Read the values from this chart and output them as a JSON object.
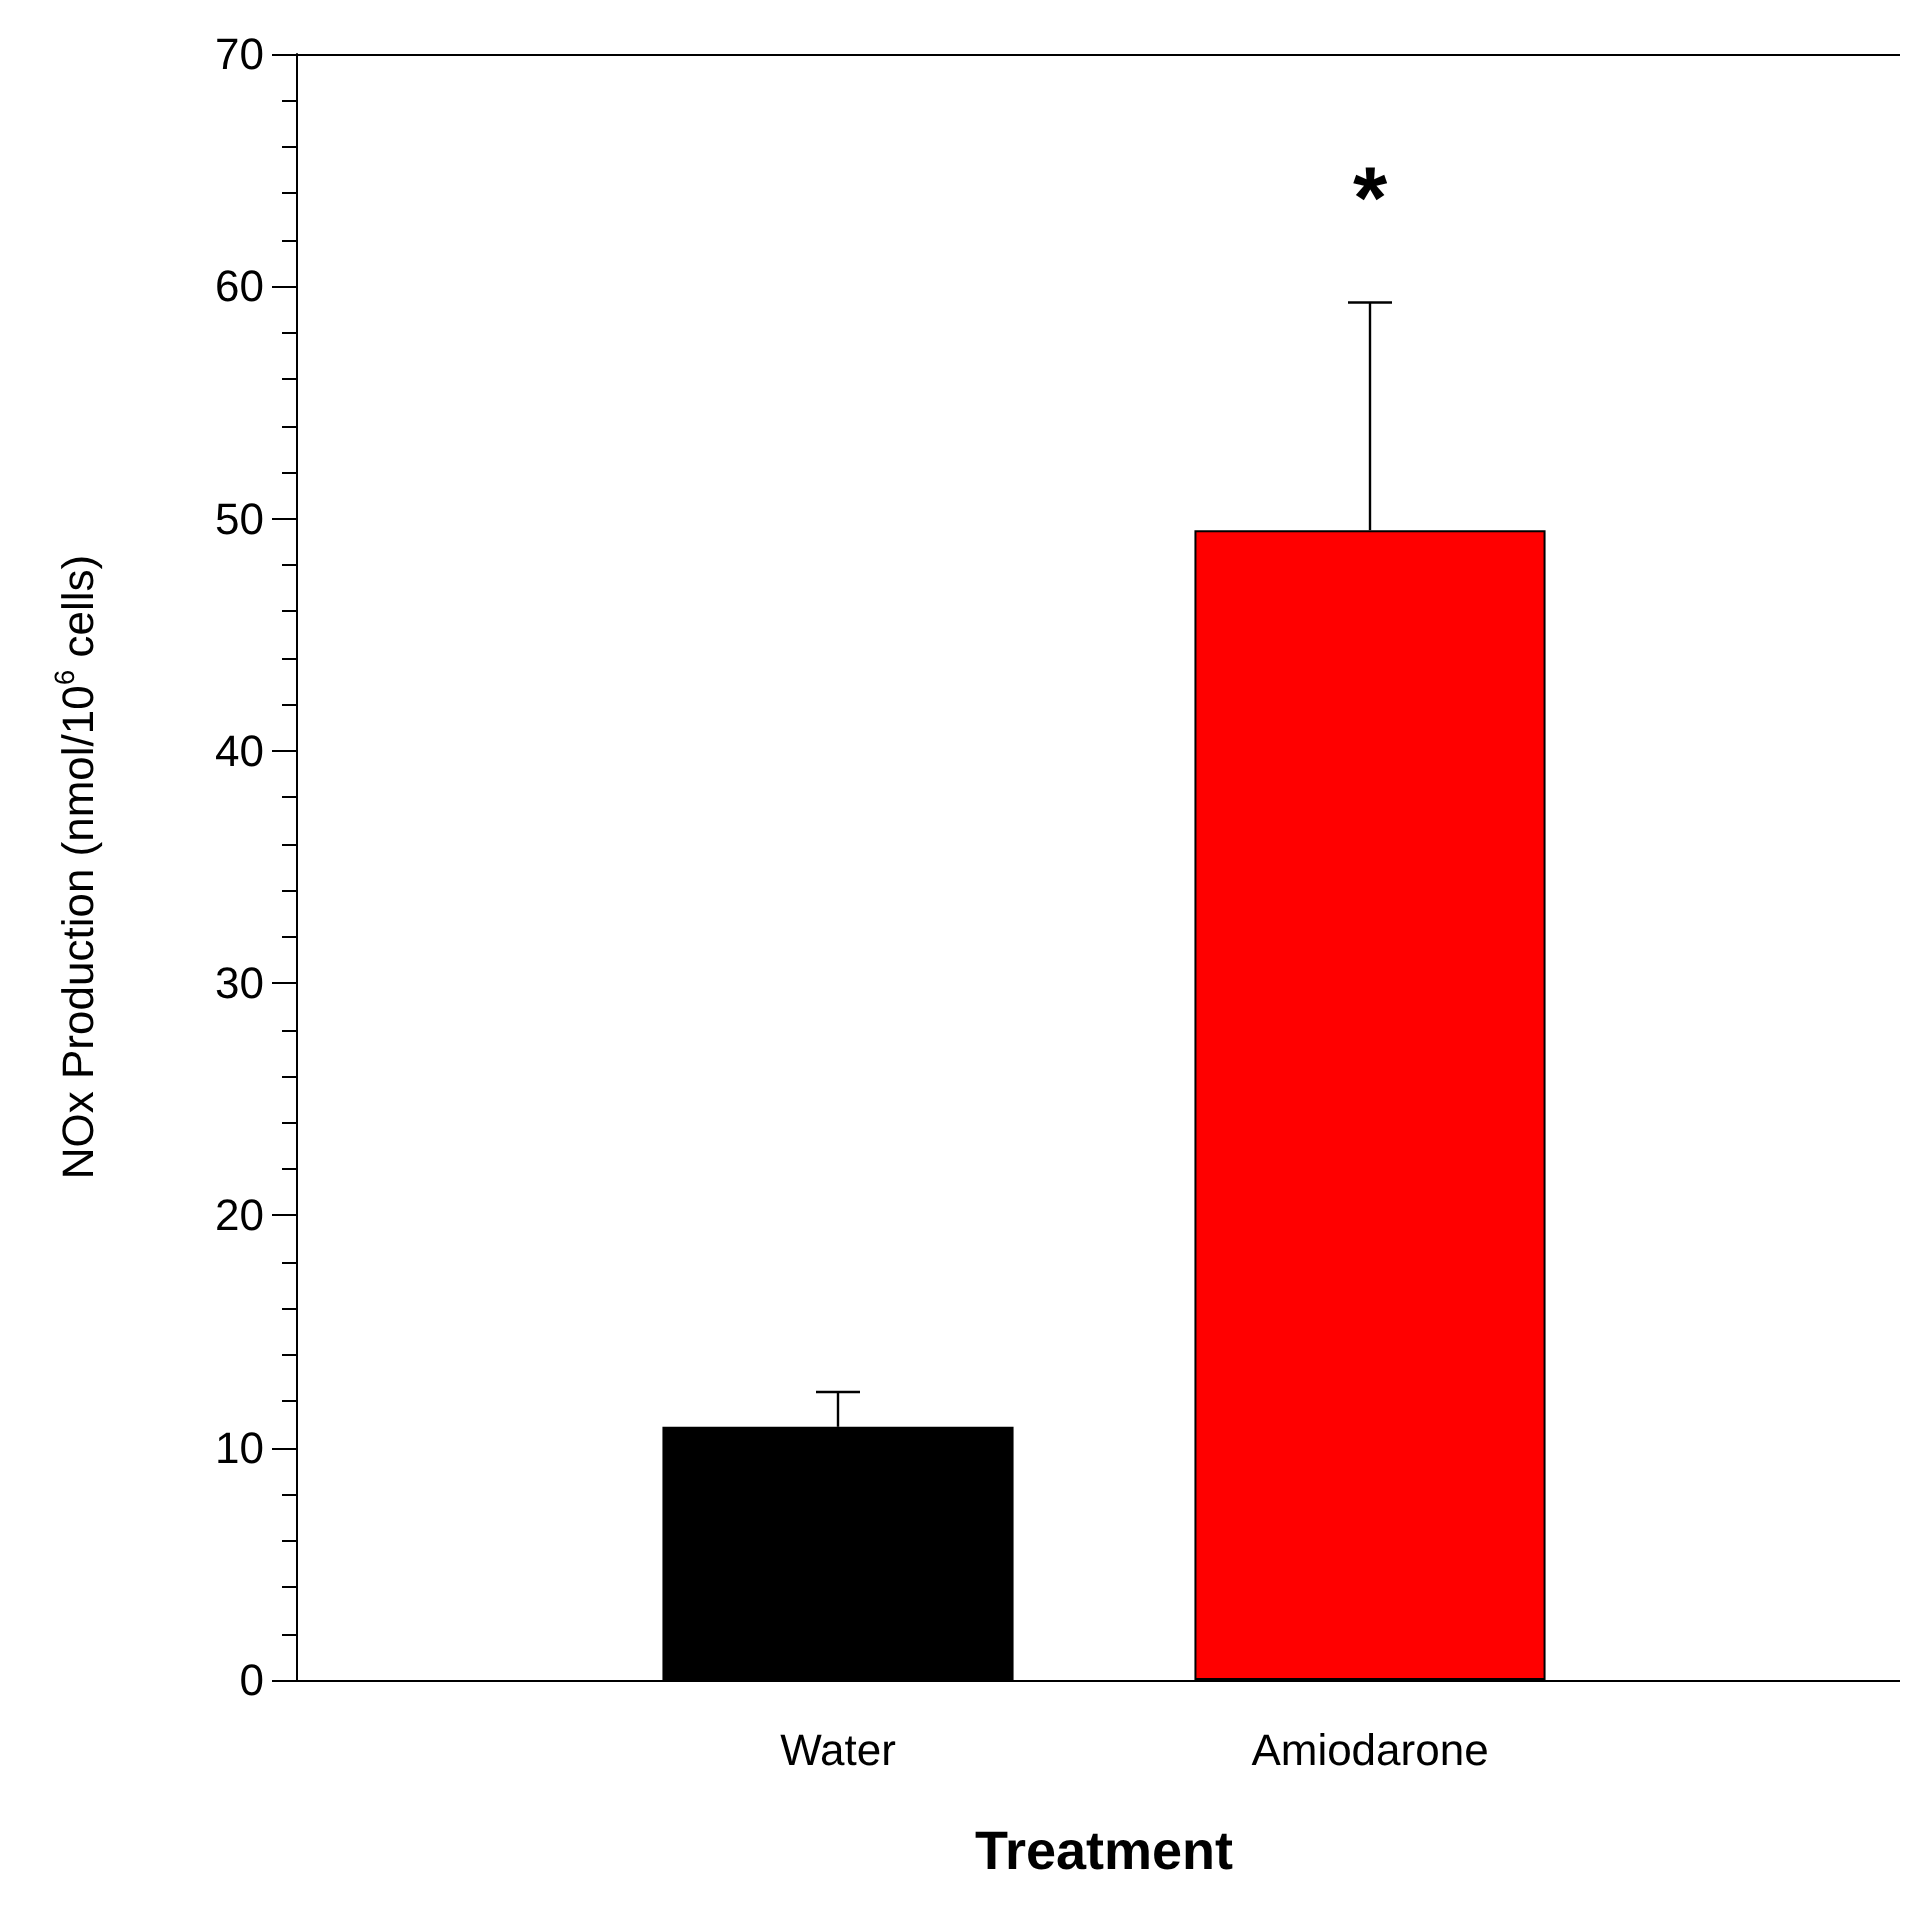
{
  "chart_data": {
    "type": "bar",
    "xlabel": "Treatment",
    "ylabel": "NOx Production (nmol/10$^{6}$ cells)",
    "categories": [
      "Water",
      "Amiodarone"
    ],
    "values": [
      10.9,
      49.5
    ],
    "colors": [
      "#000000",
      "#ff0000"
    ],
    "errors": [
      1.5,
      9.8
    ],
    "ylim": [
      0,
      70
    ],
    "yticks": [
      0,
      10,
      20,
      30,
      40,
      50,
      60,
      70
    ],
    "annotations": [
      "*"
    ],
    "grid": false
  }
}
